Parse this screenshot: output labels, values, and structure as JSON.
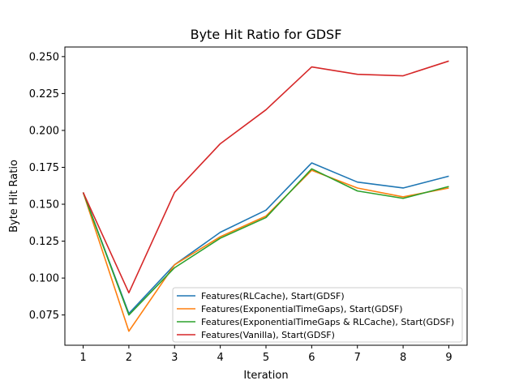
{
  "chart_data": {
    "type": "line",
    "title": "Byte Hit Ratio for GDSF",
    "xlabel": "Iteration",
    "ylabel": "Byte Hit Ratio",
    "x": [
      1,
      2,
      3,
      4,
      5,
      6,
      7,
      8,
      9
    ],
    "xticks": [
      "1",
      "2",
      "3",
      "4",
      "5",
      "6",
      "7",
      "8",
      "9"
    ],
    "yticks": [
      "0.075",
      "0.100",
      "0.125",
      "0.150",
      "0.175",
      "0.200",
      "0.225",
      "0.250"
    ],
    "xlim": [
      0.6,
      9.4
    ],
    "ylim": [
      0.0545,
      0.2565
    ],
    "grid": false,
    "legend_position": "lower-right",
    "series": [
      {
        "name": "Features(RLCache), Start(GDSF)",
        "color": "#1f77b4",
        "values": [
          0.158,
          0.076,
          0.109,
          0.131,
          0.146,
          0.178,
          0.165,
          0.161,
          0.169
        ]
      },
      {
        "name": "Features(ExponentialTimeGaps), Start(GDSF)",
        "color": "#ff7f0e",
        "values": [
          0.158,
          0.064,
          0.109,
          0.128,
          0.142,
          0.173,
          0.161,
          0.155,
          0.161
        ]
      },
      {
        "name": "Features(ExponentialTimeGaps & RLCache), Start(GDSF)",
        "color": "#2ca02c",
        "values": [
          0.158,
          0.075,
          0.107,
          0.127,
          0.141,
          0.174,
          0.159,
          0.154,
          0.162
        ]
      },
      {
        "name": "Features(Vanilla), Start(GDSF)",
        "color": "#d62728",
        "values": [
          0.158,
          0.09,
          0.158,
          0.191,
          0.214,
          0.243,
          0.238,
          0.237,
          0.247
        ]
      }
    ]
  }
}
